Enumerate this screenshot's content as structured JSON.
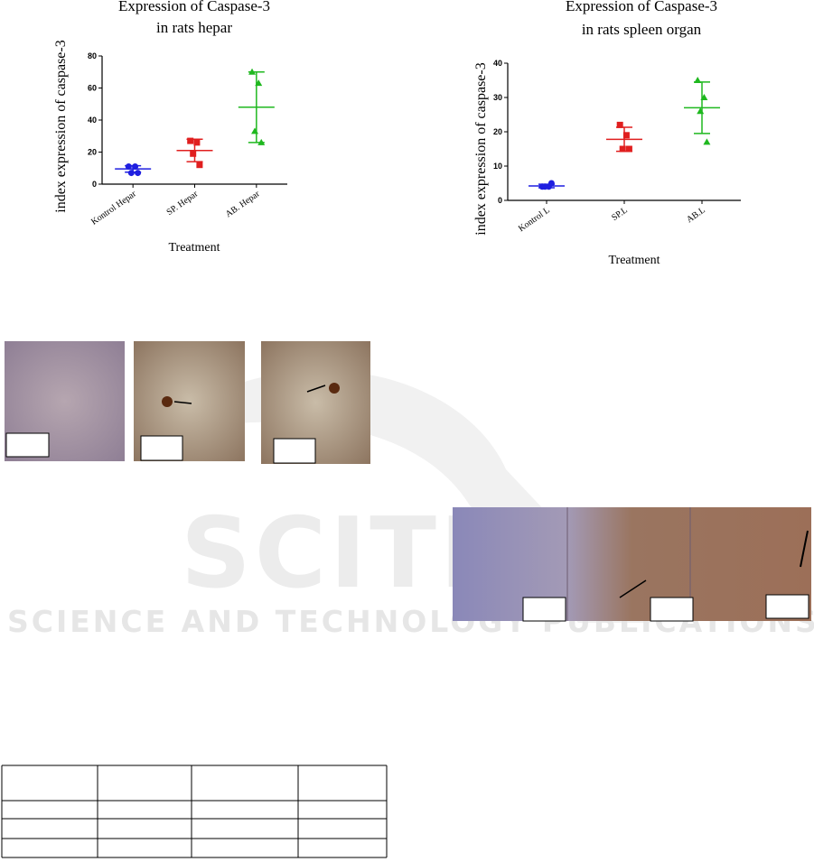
{
  "chart_data": [
    {
      "type": "dot",
      "title": [
        "Expression of Caspase-3",
        "in rats hepar"
      ],
      "y_label": "index expression of caspase-3",
      "x_label": "Treatment",
      "categories": [
        "Kontrol Hepar",
        "SP. Hepar",
        "AB. Hepar"
      ],
      "colors": [
        "#1f1fe0",
        "#e01f1f",
        "#1fb81f"
      ],
      "points": [
        [
          11,
          11,
          7,
          7
        ],
        [
          27,
          26,
          19,
          12
        ],
        [
          70,
          63,
          33,
          26
        ]
      ],
      "means": [
        9.5,
        21,
        48
      ],
      "errors": [
        2,
        7,
        22
      ],
      "ylim": [
        0,
        80
      ],
      "yticks": [
        0,
        20,
        40,
        60,
        80
      ]
    },
    {
      "type": "dot",
      "title": [
        "Expression of Caspase-3",
        "in rats spleen organ"
      ],
      "y_label": "index expression of caspase-3",
      "x_label": "Treatment",
      "categories": [
        "Kontrol L",
        "SP.L",
        "AB.L"
      ],
      "colors": [
        "#1f1fe0",
        "#e01f1f",
        "#1fb81f"
      ],
      "points": [
        [
          4,
          4,
          4,
          5
        ],
        [
          22,
          19,
          15,
          15
        ],
        [
          35,
          30,
          26,
          17
        ]
      ],
      "means": [
        4.2,
        17.8,
        27
      ],
      "errors": [
        0.5,
        3.5,
        7.5
      ],
      "ylim": [
        0,
        40
      ],
      "yticks": [
        0,
        10,
        20,
        30,
        40
      ]
    }
  ],
  "watermark": {
    "title": "SCITEP",
    "subtitle": "SCIENCE AND TECHNOLOGY PUBLICATIONS"
  }
}
